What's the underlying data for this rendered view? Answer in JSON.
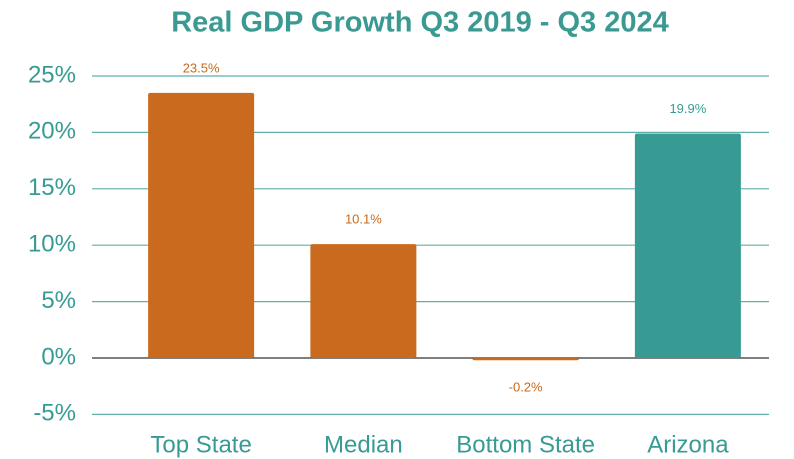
{
  "chart_data": {
    "type": "bar",
    "title": "Real GDP Growth Q3 2019 - Q3 2024",
    "categories": [
      "Top State",
      "Median",
      "Bottom State",
      "Arizona"
    ],
    "values": [
      23.5,
      10.1,
      -0.2,
      19.9
    ],
    "value_labels": [
      "23.5%",
      "10.1%",
      "-0.2%",
      "19.9%"
    ],
    "colors": [
      "#c96a1e",
      "#c96a1e",
      "#c96a1e",
      "#379b94"
    ],
    "ylim": [
      -5,
      25
    ],
    "yticks": [
      {
        "value": -5,
        "label": "-5%"
      },
      {
        "value": 0,
        "label": "0%"
      },
      {
        "value": 5,
        "label": "5%"
      },
      {
        "value": 10,
        "label": "10%"
      },
      {
        "value": 15,
        "label": "15%"
      },
      {
        "value": 20,
        "label": "20%"
      },
      {
        "value": 25,
        "label": "25%"
      }
    ],
    "grid": true
  }
}
